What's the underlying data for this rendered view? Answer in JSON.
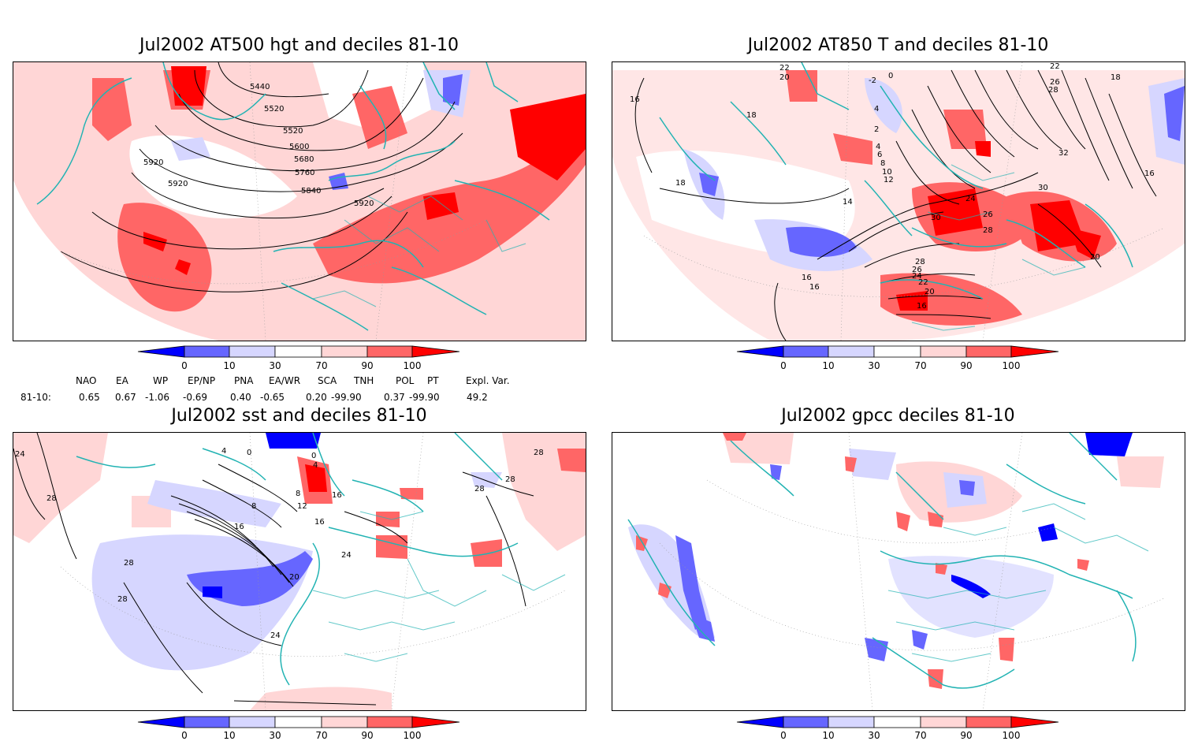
{
  "colors": {
    "coast": "#22b3b3",
    "frame": "#000000",
    "deep_blue": "#0000ff",
    "mid_blue": "#6666ff",
    "light_blue": "#d6d6ff",
    "light_red": "#ffd6d6",
    "mid_red": "#ff6666",
    "deep_red": "#ff0000"
  },
  "colorbar": {
    "tick_labels": [
      "0",
      "10",
      "30",
      "70",
      "90",
      "100"
    ]
  },
  "panels": [
    {
      "title": "Jul2002 AT500 hgt and deciles 81-10",
      "contour_labels": [
        "5440",
        "5520",
        "5520",
        "5600",
        "5680",
        "5760",
        "5840",
        "5920",
        "5920",
        "5920"
      ]
    },
    {
      "title": "Jul2002 AT850 T and deciles 81-10",
      "contour_labels": [
        "22",
        "20",
        "-2",
        "0",
        "4",
        "2",
        "4",
        "6",
        "8",
        "10",
        "12",
        "14",
        "16",
        "16",
        "16",
        "18",
        "18",
        "18",
        "22",
        "26",
        "28",
        "32",
        "30",
        "24",
        "26",
        "28",
        "30",
        "28",
        "26",
        "24",
        "22",
        "20",
        "16",
        "20",
        "16"
      ]
    },
    {
      "title": "Jul2002 sst and deciles 81-10",
      "contour_labels": [
        "24",
        "28",
        "28",
        "28",
        "4",
        "0",
        "0",
        "4",
        "8",
        "8",
        "12",
        "16",
        "16",
        "16",
        "20",
        "24",
        "24",
        "28",
        "28",
        "28"
      ]
    },
    {
      "title": "Jul2002 gpcc deciles 81-10",
      "contour_labels": []
    }
  ],
  "teleconnection_indices": {
    "headers": [
      "NAO",
      "EA",
      "WP",
      "EP/NP",
      "PNA",
      "EA/WR",
      "SCA",
      "TNH",
      "POL",
      "PT",
      "Expl. Var."
    ],
    "row_label": "81-10:",
    "values": [
      "0.65",
      "0.67",
      "-1.06",
      "-0.69",
      "0.40",
      "-0.65",
      "0.20",
      "-99.90",
      "0.37",
      "-99.90",
      "49.2"
    ]
  }
}
